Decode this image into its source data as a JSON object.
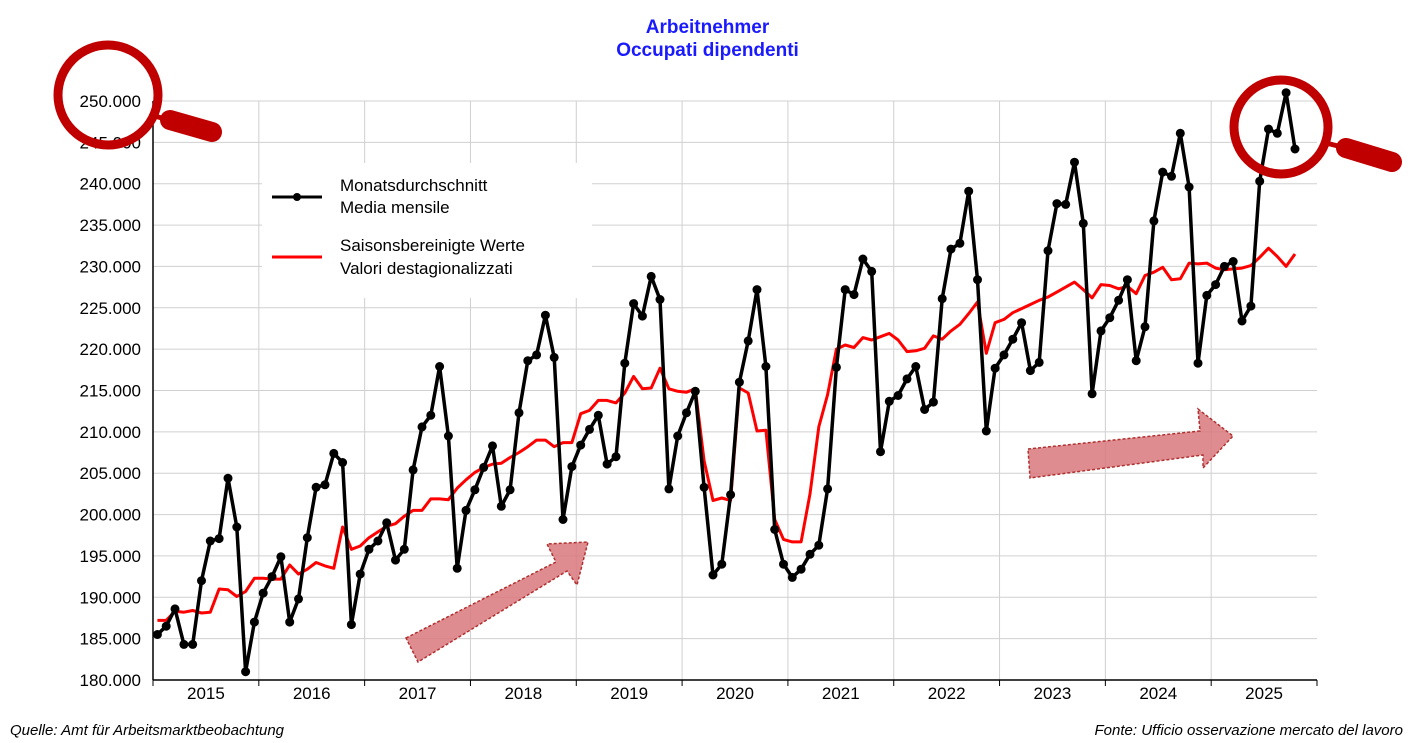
{
  "chart_data": {
    "type": "line",
    "title": "Arbeitnehmer",
    "subtitle": "Occupati dipendenti",
    "ylim": [
      180000,
      250000
    ],
    "yticks": [
      "180.000",
      "185.000",
      "190.000",
      "195.000",
      "200.000",
      "205.000",
      "210.000",
      "215.000",
      "220.000",
      "225.000",
      "230.000",
      "235.000",
      "240.000",
      "245.000",
      "250.000"
    ],
    "years": [
      "2015",
      "2016",
      "2017",
      "2018",
      "2019",
      "2020",
      "2021",
      "2022",
      "2023",
      "2024",
      "2025"
    ],
    "grid": true,
    "legend_position": "top-left",
    "x_start": "2015-01",
    "series": [
      {
        "name": "Monatsdurchschnitt",
        "name2": "Media mensile",
        "color": "#000000",
        "markers": true,
        "values": [
          185500,
          186500,
          188600,
          184300,
          184300,
          192000,
          196800,
          197100,
          204400,
          198500,
          181000,
          187000,
          190500,
          192500,
          194900,
          187000,
          189800,
          197200,
          203300,
          203600,
          207400,
          206300,
          186700,
          192800,
          195800,
          196800,
          199000,
          194500,
          195800,
          205400,
          210600,
          212000,
          217900,
          209500,
          193500,
          200500,
          203000,
          205700,
          208300,
          201000,
          203000,
          212300,
          218600,
          219300,
          224100,
          219000,
          199400,
          205800,
          208400,
          210300,
          212000,
          206100,
          207000,
          218300,
          225500,
          224000,
          228800,
          226000,
          203100,
          209500,
          212300,
          214900,
          203300,
          192700,
          194000,
          202400,
          216000,
          221000,
          227200,
          217900,
          198200,
          194000,
          192400,
          193400,
          195200,
          196300,
          203100,
          217800,
          227200,
          226600,
          230900,
          229400,
          207600,
          213700,
          214400,
          216400,
          217900,
          212700,
          213600,
          226100,
          232100,
          232800,
          239100,
          228400,
          210100,
          217700,
          219300,
          221200,
          223200,
          217400,
          218400,
          231900,
          237600,
          237500,
          242600,
          235200,
          214600,
          222200,
          223800,
          225900,
          228400,
          218600,
          222700,
          235500,
          241400,
          240900,
          246100,
          239600,
          218300,
          226500,
          227800,
          230000,
          230600,
          223400,
          225200,
          240300,
          246600,
          246100,
          251000,
          244200
        ]
      },
      {
        "name": "Saisonsbereinigte Werte",
        "name2": "Valori destagionalizzati",
        "color": "#ff0000",
        "markers": false,
        "values": [
          187200,
          187200,
          188300,
          188200,
          188400,
          188100,
          188200,
          191000,
          190900,
          190100,
          190700,
          192300,
          192300,
          192200,
          192200,
          193900,
          192800,
          193400,
          194200,
          193800,
          193500,
          198500,
          195800,
          196200,
          197200,
          197900,
          198600,
          198900,
          199800,
          200500,
          200500,
          201900,
          201900,
          201800,
          203200,
          204200,
          205100,
          205700,
          206100,
          206200,
          206900,
          207500,
          208200,
          209000,
          209000,
          208200,
          208700,
          208700,
          212200,
          212600,
          213800,
          213800,
          213500,
          214700,
          216700,
          215200,
          215300,
          217700,
          215200,
          214900,
          214800,
          215200,
          206500,
          201700,
          202000,
          201700,
          215300,
          214700,
          210100,
          210200,
          199400,
          197000,
          196700,
          196700,
          202500,
          210600,
          214500,
          220000,
          220500,
          220200,
          221400,
          221100,
          221500,
          221900,
          221100,
          219700,
          219800,
          220100,
          221600,
          221200,
          222200,
          223000,
          224300,
          225700,
          219500,
          223200,
          223600,
          224400,
          224900,
          225400,
          225900,
          226300,
          226900,
          227500,
          228100,
          227200,
          226200,
          227800,
          227700,
          227300,
          227600,
          226700,
          228900,
          229300,
          229900,
          228400,
          228500,
          230400,
          230300,
          230400,
          229800,
          229600,
          229700,
          229800,
          230100,
          231100,
          232200,
          231200,
          230000,
          231500
        ]
      }
    ],
    "source_left": "Quelle: Amt für Arbeitsmarktbeobachtung",
    "source_right": "Fonte: Ufficio osservazione mercato del lavoro"
  },
  "annotations": {
    "magnifier_icon": "magnifier-icon",
    "arrow_icon": "trend-arrow-icon",
    "circle_color": "#c00000",
    "arrow_color": "#d9787c"
  }
}
